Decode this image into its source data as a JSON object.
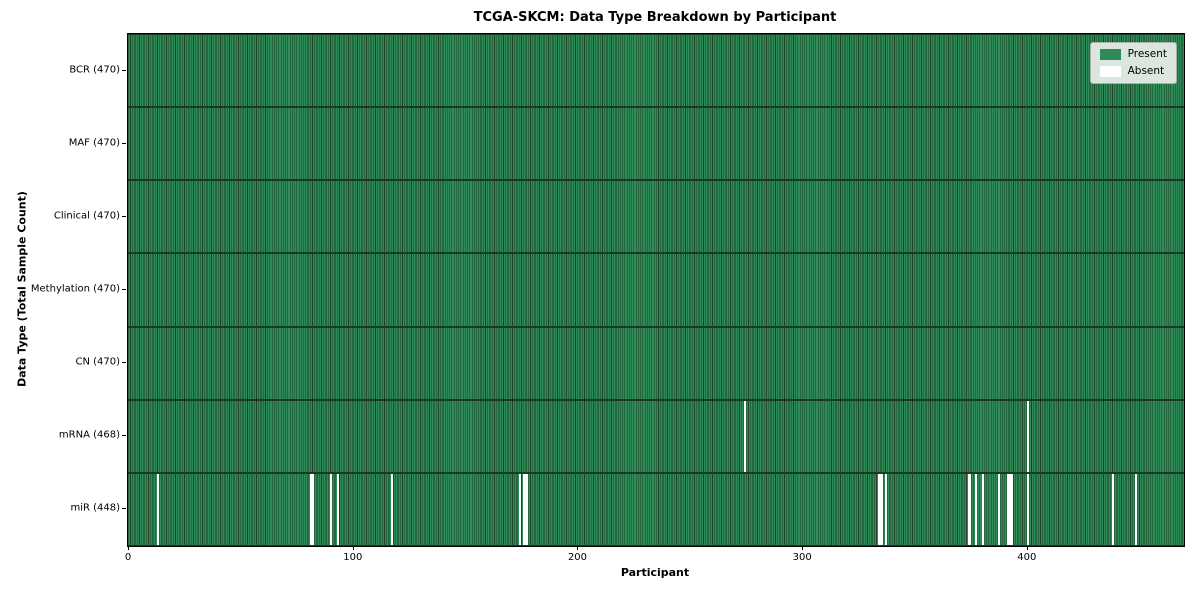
{
  "colors": {
    "present": "#2e8b57",
    "absent": "#ffffff",
    "bar_edge": "#1b4429",
    "spine": "#000000",
    "legend_bg": "#dbe7de",
    "legend_border": "#a9b3a9"
  },
  "chart_data": {
    "type": "heatmap",
    "title": "TCGA-SKCM: Data Type Breakdown by Participant",
    "xlabel": "Participant",
    "ylabel": "Data Type (Total Sample Count)",
    "n_participants": 470,
    "x_ticks": [
      0,
      100,
      200,
      300,
      400
    ],
    "grid": false,
    "legend_position": "upper right",
    "legend": [
      {
        "label": "Present",
        "color": "#2e8b57"
      },
      {
        "label": "Absent",
        "color": "#ffffff"
      }
    ],
    "rows": [
      {
        "label": "BCR (470)",
        "data_type": "BCR",
        "total_samples": 470,
        "absent_participants": []
      },
      {
        "label": "MAF (470)",
        "data_type": "MAF",
        "total_samples": 470,
        "absent_participants": []
      },
      {
        "label": "Clinical (470)",
        "data_type": "Clinical",
        "total_samples": 470,
        "absent_participants": []
      },
      {
        "label": "Methylation (470)",
        "data_type": "Methylation",
        "total_samples": 470,
        "absent_participants": []
      },
      {
        "label": "CN (470)",
        "data_type": "CN",
        "total_samples": 470,
        "absent_participants": []
      },
      {
        "label": "mRNA (468)",
        "data_type": "mRNA",
        "total_samples": 468,
        "absent_participants": [
          274,
          400
        ]
      },
      {
        "label": "miR (448)",
        "data_type": "miR",
        "total_samples": 448,
        "absent_participants": [
          13,
          81,
          82,
          90,
          93,
          117,
          174,
          176,
          177,
          334,
          335,
          337,
          374,
          377,
          380,
          387,
          391,
          392,
          393,
          400,
          438,
          448
        ]
      }
    ]
  }
}
